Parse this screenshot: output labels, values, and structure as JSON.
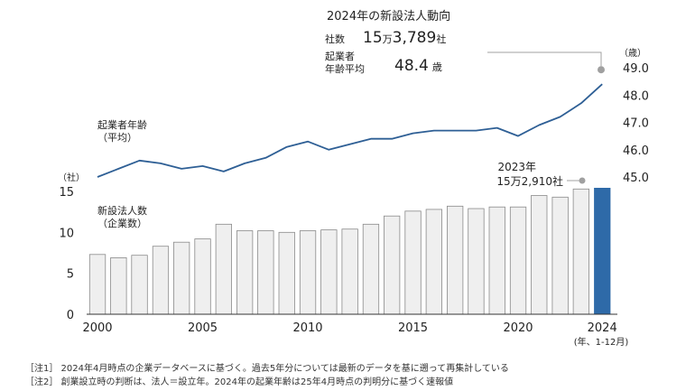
{
  "summary": {
    "title": "2024年の新設法人動向",
    "companies_label": "社数",
    "companies_value_prefix": "15",
    "companies_value_man": "万",
    "companies_value_rest": "3,789",
    "companies_unit": "社",
    "age_label_line1": "起業者",
    "age_label_line2": "年齢平均",
    "age_value": "48.4",
    "age_unit": "歳"
  },
  "annotation_2023": {
    "line1": "2023年",
    "line2": "15万2,910社"
  },
  "notes": [
    "［注1］ 2024年4月時点の企業データベースに基づく。過去5年分については最新のデータを基に遡って再集計している",
    "［注2］ 創業設立時の判断は、法人＝設立年。2024年の起業年齢は25年4月時点の判明分に基づく速報値"
  ],
  "colors": {
    "bar_fill": "#efefef",
    "bar_stroke": "#8a8a8a",
    "bar_highlight": "#2e6aa8",
    "line": "#2e5f95",
    "marker": "#a0a0a0",
    "axis": "#333333"
  },
  "chart_data": {
    "type": "bar+line",
    "x": [
      2000,
      2001,
      2002,
      2003,
      2004,
      2005,
      2006,
      2007,
      2008,
      2009,
      2010,
      2011,
      2012,
      2013,
      2014,
      2015,
      2016,
      2017,
      2018,
      2019,
      2020,
      2021,
      2022,
      2023,
      2024
    ],
    "x_tick_labels": [
      "2000",
      "2005",
      "2010",
      "2015",
      "2020",
      "2024"
    ],
    "x_last_sublabel": "(年、1-12月)",
    "bar_series": {
      "label_line1": "新設法人数",
      "label_line2": "（企業数）",
      "unit_label": "（社）",
      "values": [
        7.3,
        6.9,
        7.2,
        8.3,
        8.8,
        9.2,
        11.0,
        10.2,
        10.2,
        10.0,
        10.2,
        10.3,
        10.4,
        11.0,
        12.0,
        12.6,
        12.8,
        13.2,
        12.9,
        13.1,
        13.1,
        14.5,
        14.3,
        15.3,
        15.4
      ],
      "ylim": [
        0,
        15
      ],
      "y_ticks": [
        "0",
        "5",
        "10",
        "15"
      ]
    },
    "line_series": {
      "label_line1": "起業者年齢",
      "label_line2": "（平均）",
      "unit_label": "（歳）",
      "values": [
        45.0,
        45.3,
        45.6,
        45.5,
        45.3,
        45.4,
        45.2,
        45.5,
        45.7,
        46.1,
        46.3,
        46.0,
        46.2,
        46.4,
        46.4,
        46.6,
        46.7,
        46.7,
        46.7,
        46.8,
        46.5,
        46.9,
        47.2,
        47.7,
        48.4
      ],
      "ylim": [
        45.0,
        49.0
      ],
      "y_ticks": [
        "45.0",
        "46.0",
        "47.0",
        "48.0",
        "49.0"
      ]
    }
  }
}
